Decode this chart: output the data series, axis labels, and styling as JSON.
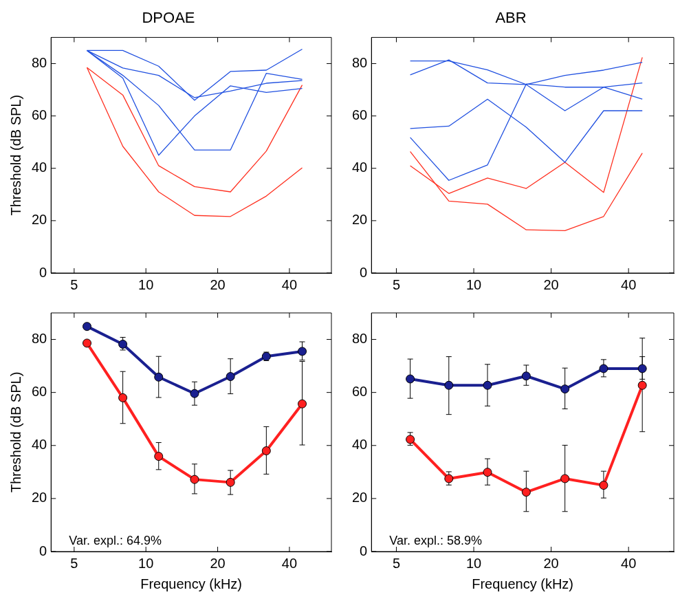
{
  "chart_data": [
    {
      "type": "line",
      "title": "DPOAE",
      "ylabel": "Threshold (dB SPL)",
      "x": [
        5.66,
        8,
        11.31,
        16,
        22.63,
        32,
        45.25
      ],
      "log": "x",
      "xlim": [
        4,
        60
      ],
      "xticks": [
        5,
        10,
        20,
        40
      ],
      "ylim": [
        0,
        90
      ],
      "yticks": [
        0,
        20,
        40,
        60,
        80
      ],
      "grid": false,
      "legend": false,
      "marker": "none",
      "line_style": "solid",
      "series": [
        {
          "color": "#2050e0",
          "values": [
            85,
            85,
            79,
            66,
            77,
            77.5,
            85.5
          ]
        },
        {
          "color": "#2050e0",
          "values": [
            85,
            78.3,
            75.5,
            67,
            69.5,
            72.5,
            73.5
          ]
        },
        {
          "color": "#2050e0",
          "values": [
            85,
            74.5,
            45,
            60,
            71.5,
            69,
            70.5
          ]
        },
        {
          "color": "#2050e0",
          "values": [
            85,
            75.5,
            64,
            47,
            47,
            76.3,
            74
          ]
        },
        {
          "color": "#ff3020",
          "values": [
            78.5,
            68,
            41,
            33,
            31,
            46.6,
            71.8
          ]
        },
        {
          "color": "#ff3020",
          "values": [
            78.5,
            48.4,
            31,
            22,
            21.6,
            29.4,
            40.2
          ]
        }
      ]
    },
    {
      "type": "line",
      "title": "ABR",
      "x": [
        5.66,
        8,
        11.31,
        16,
        22.63,
        32,
        45.25
      ],
      "log": "x",
      "xlim": [
        4,
        60
      ],
      "xticks": [
        5,
        10,
        20,
        40
      ],
      "ylim": [
        0,
        90
      ],
      "yticks": [
        0,
        20,
        40,
        60,
        80
      ],
      "grid": false,
      "legend": false,
      "marker": "none",
      "line_style": "solid",
      "series": [
        {
          "color": "#2050e0",
          "values": [
            81,
            81,
            77.6,
            72,
            75.5,
            77.5,
            80.5
          ]
        },
        {
          "color": "#2050e0",
          "values": [
            75.7,
            81.4,
            72.6,
            72,
            62,
            71,
            66.4
          ]
        },
        {
          "color": "#2050e0",
          "values": [
            51.8,
            35.4,
            41.3,
            72.2,
            71,
            71,
            72.6
          ]
        },
        {
          "color": "#2050e0",
          "values": [
            55.2,
            56.1,
            66.4,
            55.7,
            42.3,
            62,
            62
          ]
        },
        {
          "color": "#ff3020",
          "values": [
            46.4,
            27.5,
            26.3,
            16.5,
            16.2,
            21.6,
            45.8
          ]
        },
        {
          "color": "#ff3020",
          "values": [
            41,
            30.4,
            36.3,
            32.3,
            42.3,
            30.8,
            82.4
          ]
        }
      ]
    },
    {
      "type": "line",
      "ylabel": "Threshold (dB SPL)",
      "xlabel": "Frequency (kHz)",
      "annotations": [
        "Var. expl.: 64.9%"
      ],
      "x": [
        5.66,
        8,
        11.31,
        16,
        22.63,
        32,
        45.25
      ],
      "log": "x",
      "xlim": [
        4,
        60
      ],
      "xticks": [
        5,
        10,
        20,
        40
      ],
      "ylim": [
        0,
        90
      ],
      "yticks": [
        0,
        20,
        40,
        60,
        80
      ],
      "grid": false,
      "legend": false,
      "marker": "circle",
      "line_style": "solid",
      "series": [
        {
          "color": "#1a2090",
          "values": [
            84.9,
            78.2,
            65.8,
            59.6,
            66,
            73.6,
            75.5
          ],
          "errors": [
            null,
            [
              76,
              80.8
            ],
            [
              58.1,
              73.6
            ],
            [
              55.2,
              64
            ],
            [
              59.5,
              72.7
            ],
            [
              72,
              75.2
            ],
            [
              72.2,
              79.1
            ]
          ]
        },
        {
          "color": "#ff2020",
          "values": [
            78.6,
            58,
            35.9,
            27.2,
            26.1,
            38,
            55.7
          ],
          "errors": [
            null,
            [
              48.3,
              67.9
            ],
            [
              30.9,
              41.1
            ],
            [
              21.8,
              33
            ],
            [
              21.5,
              30.6
            ],
            [
              29.2,
              47.1
            ],
            [
              40.2,
              71.7
            ]
          ]
        }
      ]
    },
    {
      "type": "line",
      "xlabel": "Frequency (kHz)",
      "annotations": [
        "Var. expl.: 58.9%"
      ],
      "x": [
        5.66,
        8,
        11.31,
        16,
        22.63,
        32,
        45.25
      ],
      "log": "x",
      "xlim": [
        4,
        60
      ],
      "xticks": [
        5,
        10,
        20,
        40
      ],
      "ylim": [
        0,
        90
      ],
      "yticks": [
        0,
        20,
        40,
        60,
        80
      ],
      "grid": false,
      "legend": false,
      "marker": "circle",
      "line_style": "solid",
      "series": [
        {
          "color": "#1a2090",
          "values": [
            65.1,
            62.7,
            62.7,
            66.2,
            61.3,
            69,
            69
          ],
          "errors": [
            [
              57.8,
              72.6
            ],
            [
              51.7,
              73.5
            ],
            [
              54.9,
              70.6
            ],
            [
              62.7,
              70.3
            ],
            [
              53.8,
              69.2
            ],
            [
              65.9,
              72.4
            ],
            [
              65,
              73.5
            ]
          ]
        },
        {
          "color": "#ff2020",
          "values": [
            42.3,
            27.5,
            29.9,
            22.4,
            27.5,
            25,
            62.7
          ],
          "errors": [
            [
              40.1,
              44.9
            ],
            [
              25.1,
              30.1
            ],
            [
              25.1,
              35
            ],
            [
              15.1,
              30.3
            ],
            [
              15.1,
              40.1
            ],
            [
              20.2,
              30.3
            ],
            [
              45.2,
              80.5
            ]
          ]
        }
      ]
    }
  ]
}
